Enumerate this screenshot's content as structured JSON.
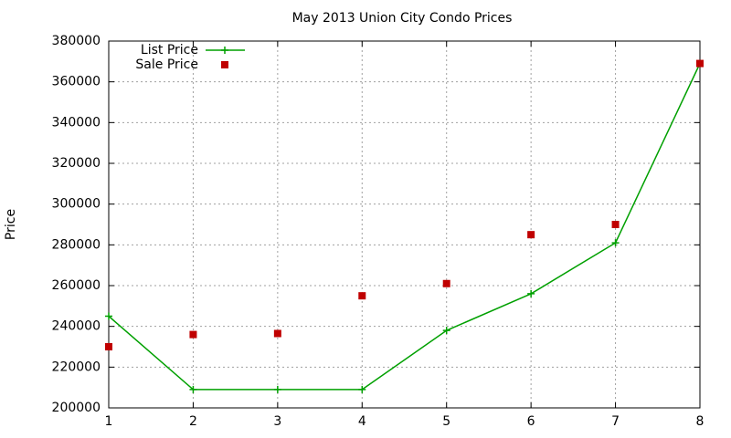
{
  "chart_data": {
    "type": "line",
    "title": "May 2013 Union City Condo Prices",
    "y_label": "Price",
    "x": [
      1,
      2,
      3,
      4,
      5,
      6,
      7,
      8
    ],
    "series": [
      {
        "name": "List Price",
        "color": "#00a000",
        "style": "linespoints",
        "values": [
          245000,
          209000,
          209000,
          209000,
          238000,
          256000,
          281000,
          369000
        ]
      },
      {
        "name": "Sale Price",
        "color": "#c00000",
        "style": "points",
        "values": [
          230000,
          236000,
          236500,
          255000,
          261000,
          285000,
          290000,
          369000
        ]
      }
    ],
    "xlim": [
      1,
      8
    ],
    "xticks": [
      1,
      2,
      3,
      4,
      5,
      6,
      7,
      8
    ],
    "ylim": [
      200000,
      380000
    ],
    "yticks": [
      200000,
      220000,
      240000,
      260000,
      280000,
      300000,
      320000,
      340000,
      360000,
      380000
    ],
    "grid": true,
    "legend": "top left"
  }
}
